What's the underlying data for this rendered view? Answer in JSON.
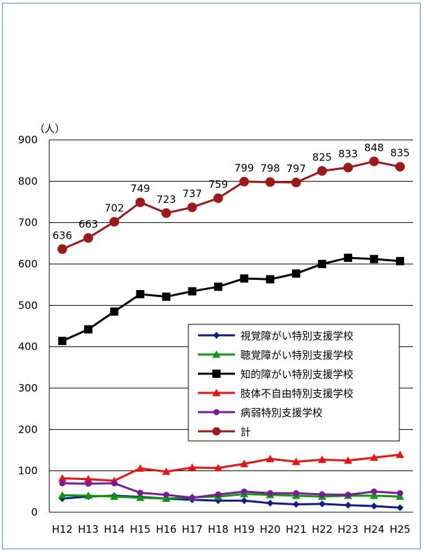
{
  "chart_data": {
    "type": "line",
    "y_unit_label": "（人）",
    "ylim": [
      0,
      900
    ],
    "yticks": [
      0,
      100,
      200,
      300,
      400,
      500,
      600,
      700,
      800,
      900
    ],
    "grid": true,
    "legend_position": "center-right",
    "categories": [
      "H12",
      "H13",
      "H14",
      "H15",
      "H16",
      "H17",
      "H18",
      "H19",
      "H20",
      "H21",
      "H22",
      "H23",
      "H24",
      "H25"
    ],
    "series": [
      {
        "name": "視覚障がい特別支援学校",
        "color": "#0f1a8c",
        "marker": "diamond",
        "values": [
          33,
          38,
          40,
          37,
          33,
          30,
          28,
          28,
          22,
          19,
          20,
          17,
          15,
          11
        ]
      },
      {
        "name": "聴覚障がい特別支援学校",
        "color": "#0a9a0a",
        "marker": "triangle",
        "values": [
          41,
          40,
          38,
          35,
          33,
          36,
          38,
          44,
          42,
          40,
          38,
          40,
          40,
          38
        ]
      },
      {
        "name": "知的障がい特別支援学校",
        "color": "#000000",
        "marker": "square",
        "values": [
          414,
          442,
          485,
          527,
          521,
          534,
          545,
          565,
          563,
          577,
          600,
          615,
          612,
          607
        ]
      },
      {
        "name": "肢体不自由特別支援学校",
        "color": "#f01010",
        "marker": "triangle",
        "values": [
          82,
          80,
          76,
          106,
          98,
          108,
          107,
          117,
          129,
          122,
          127,
          125,
          132,
          139
        ]
      },
      {
        "name": "病弱特別支援学校",
        "color": "#7a1a9a",
        "marker": "circle",
        "values": [
          70,
          69,
          70,
          47,
          42,
          35,
          43,
          50,
          46,
          46,
          43,
          42,
          50,
          46
        ]
      },
      {
        "name": "計",
        "color": "#a01818",
        "marker": "circle",
        "values": [
          636,
          663,
          702,
          749,
          723,
          737,
          759,
          799,
          798,
          797,
          825,
          833,
          848,
          835
        ],
        "data_labels": [
          "636",
          "663",
          "702",
          "749",
          "723",
          "737",
          "759",
          "799",
          "798",
          "797",
          "825",
          "833",
          "848",
          "835"
        ]
      }
    ]
  }
}
